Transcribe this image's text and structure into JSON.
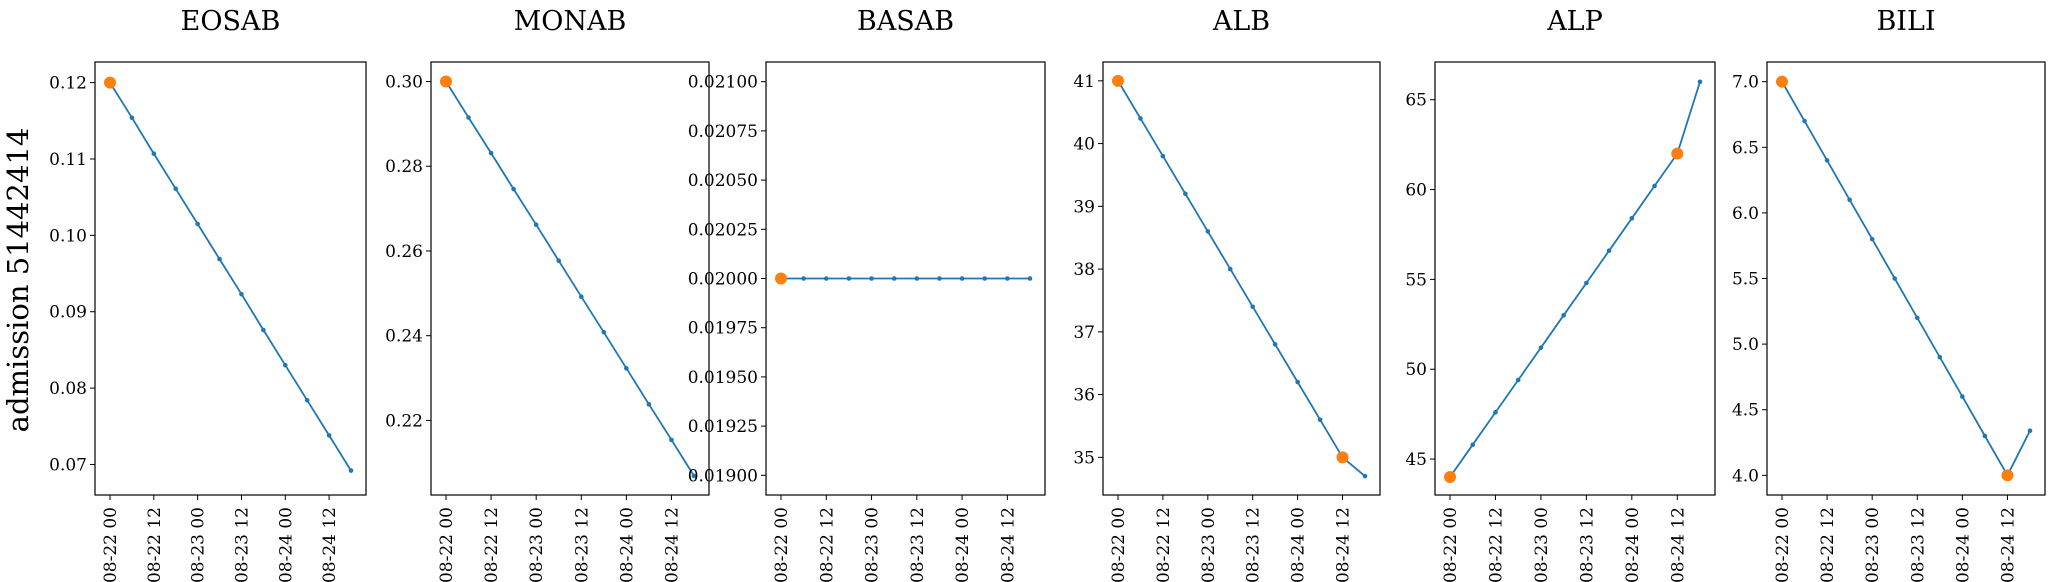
{
  "figure": {
    "ylabel": "admission 51442414",
    "colors": {
      "line": "#1f77b4",
      "highlight": "#ff7f0e"
    }
  },
  "chart_data": [
    {
      "type": "line",
      "title": "EOSAB",
      "x": [
        "08-22 00",
        "08-22 06",
        "08-22 12",
        "08-22 18",
        "08-23 00",
        "08-23 06",
        "08-23 12",
        "08-23 18",
        "08-24 00",
        "08-24 06",
        "08-24 12",
        "08-24 18"
      ],
      "x_ticks": [
        "08-22 00",
        "08-22 12",
        "08-23 00",
        "08-23 12",
        "08-24 00",
        "08-24 12"
      ],
      "values": [
        0.12,
        0.1154,
        0.1107,
        0.1061,
        0.1015,
        0.0969,
        0.0923,
        0.0876,
        0.083,
        0.0784,
        0.0738,
        0.0692
      ],
      "highlight": [
        0
      ],
      "ylim": [
        0.066,
        0.1227
      ],
      "yticks": [
        0.07,
        0.08,
        0.09,
        0.1,
        0.11,
        0.12
      ],
      "ytick_labels": [
        "0.07",
        "0.08",
        "0.09",
        "0.10",
        "0.11",
        "0.12"
      ]
    },
    {
      "type": "line",
      "title": "MONAB",
      "x": [
        "08-22 00",
        "08-22 06",
        "08-22 12",
        "08-22 18",
        "08-23 00",
        "08-23 06",
        "08-23 12",
        "08-23 18",
        "08-24 00",
        "08-24 06",
        "08-24 12",
        "08-24 18"
      ],
      "x_ticks": [
        "08-22 00",
        "08-22 12",
        "08-23 00",
        "08-23 12",
        "08-24 00",
        "08-24 12"
      ],
      "values": [
        0.3,
        0.2915,
        0.2831,
        0.2746,
        0.2662,
        0.2577,
        0.2492,
        0.2408,
        0.2323,
        0.2238,
        0.2154,
        0.2069
      ],
      "highlight": [
        0
      ],
      "ylim": [
        0.2024,
        0.3046
      ],
      "yticks": [
        0.22,
        0.24,
        0.26,
        0.28,
        0.3
      ],
      "ytick_labels": [
        "0.22",
        "0.24",
        "0.26",
        "0.28",
        "0.30"
      ]
    },
    {
      "type": "line",
      "title": "BASAB",
      "x": [
        "08-22 00",
        "08-22 06",
        "08-22 12",
        "08-22 18",
        "08-23 00",
        "08-23 06",
        "08-23 12",
        "08-23 18",
        "08-24 00",
        "08-24 06",
        "08-24 12",
        "08-24 18"
      ],
      "x_ticks": [
        "08-22 00",
        "08-22 12",
        "08-23 00",
        "08-23 12",
        "08-24 00",
        "08-24 12"
      ],
      "values": [
        0.02,
        0.02,
        0.02,
        0.02,
        0.02,
        0.02,
        0.02,
        0.02,
        0.02,
        0.02,
        0.02,
        0.02
      ],
      "highlight": [
        0
      ],
      "ylim": [
        0.0189,
        0.0211
      ],
      "yticks": [
        0.019,
        0.01925,
        0.0195,
        0.01975,
        0.02,
        0.02025,
        0.0205,
        0.02075,
        0.021
      ],
      "ytick_labels": [
        "0.01900",
        "0.01925",
        "0.01950",
        "0.01975",
        "0.02000",
        "0.02025",
        "0.02050",
        "0.02075",
        "0.02100"
      ]
    },
    {
      "type": "line",
      "title": "ALB",
      "x": [
        "08-22 00",
        "08-22 06",
        "08-22 12",
        "08-22 18",
        "08-23 00",
        "08-23 06",
        "08-23 12",
        "08-23 18",
        "08-24 00",
        "08-24 06",
        "08-24 12",
        "08-24 18"
      ],
      "x_ticks": [
        "08-22 00",
        "08-22 12",
        "08-23 00",
        "08-23 12",
        "08-24 00",
        "08-24 12"
      ],
      "values": [
        41.0,
        40.4,
        39.8,
        39.2,
        38.6,
        38.0,
        37.4,
        36.8,
        36.2,
        35.6,
        35.0,
        34.7
      ],
      "highlight": [
        0,
        10
      ],
      "ylim": [
        34.4,
        41.3
      ],
      "yticks": [
        35,
        36,
        37,
        38,
        39,
        40,
        41
      ],
      "ytick_labels": [
        "35",
        "36",
        "37",
        "38",
        "39",
        "40",
        "41"
      ]
    },
    {
      "type": "line",
      "title": "ALP",
      "x": [
        "08-22 00",
        "08-22 06",
        "08-22 12",
        "08-22 18",
        "08-23 00",
        "08-23 06",
        "08-23 12",
        "08-23 18",
        "08-24 00",
        "08-24 06",
        "08-24 12",
        "08-24 18"
      ],
      "x_ticks": [
        "08-22 00",
        "08-22 12",
        "08-23 00",
        "08-23 12",
        "08-24 00",
        "08-24 12"
      ],
      "values": [
        44.0,
        45.8,
        47.6,
        49.4,
        51.2,
        53.0,
        54.8,
        56.6,
        58.4,
        60.2,
        62.0,
        66.0
      ],
      "highlight": [
        0,
        10
      ],
      "ylim": [
        43.0,
        67.1
      ],
      "yticks": [
        45,
        50,
        55,
        60,
        65
      ],
      "ytick_labels": [
        "45",
        "50",
        "55",
        "60",
        "65"
      ]
    },
    {
      "type": "line",
      "title": "BILI",
      "x": [
        "08-22 00",
        "08-22 06",
        "08-22 12",
        "08-22 18",
        "08-23 00",
        "08-23 06",
        "08-23 12",
        "08-23 18",
        "08-24 00",
        "08-24 06",
        "08-24 12",
        "08-24 18"
      ],
      "x_ticks": [
        "08-22 00",
        "08-22 12",
        "08-23 00",
        "08-23 12",
        "08-24 00",
        "08-24 12"
      ],
      "values": [
        7.0,
        6.7,
        6.4,
        6.1,
        5.8,
        5.5,
        5.2,
        4.9,
        4.6,
        4.3,
        4.0,
        4.34
      ],
      "highlight": [
        0,
        10
      ],
      "ylim": [
        3.85,
        7.15
      ],
      "yticks": [
        4.0,
        4.5,
        5.0,
        5.5,
        6.0,
        6.5,
        7.0
      ],
      "ytick_labels": [
        "4.0",
        "4.5",
        "5.0",
        "5.5",
        "6.0",
        "6.5",
        "7.0"
      ]
    }
  ]
}
